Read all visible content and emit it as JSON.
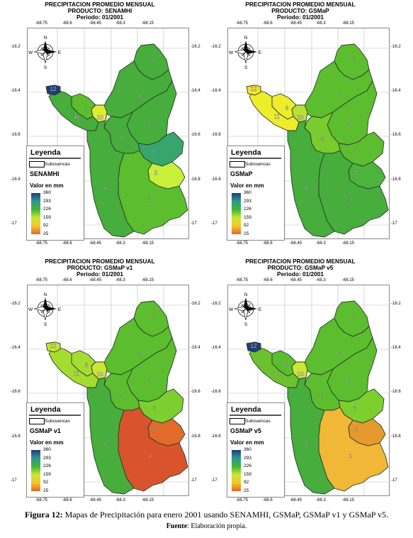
{
  "panels": [
    {
      "title": "PRECIPITACION PROMEDIO MENSUAL",
      "product_line": "PRODUCTO: SENAMHI",
      "period": "Periodo: 01/2001",
      "legend_product": "SENAMHI",
      "zone_colors": {
        "1": "#5cbd2e",
        "2": "#c8f03a",
        "3": "#47ad3d",
        "4": "#47ad3d",
        "5": "#47ad3d",
        "6": "#36a56e",
        "7": "#47ad3d",
        "8": "#5cbd2e",
        "9": "#47ad3d",
        "10": "#e0ec32",
        "11": "#47ad3d",
        "12": "#1f3d7d"
      }
    },
    {
      "title": "PRECIPITACION PROMEDIO MENSUAL",
      "product_line": "PRODUCTO: GSMaP",
      "period": "Periodo: 01/2001",
      "legend_product": "GSMaP",
      "zone_colors": {
        "1": "#47ad3d",
        "2": "#4cb43c",
        "3": "#5cbd2e",
        "4": "#47ad3d",
        "5": "#5cbd2e",
        "6": "#5cbd2e",
        "7": "#5cbd2e",
        "8": "#eded2c",
        "9": "#7acb2e",
        "10": "#b9e234",
        "11": "#eded2c",
        "12": "#f6e51c"
      }
    },
    {
      "title": "PRECIPITACION PROMEDIO MENSUAL",
      "product_line": "PRODUCTO: GSMaP v1",
      "period": "Periodo: 01/2001",
      "legend_product": "GSMaP v1",
      "zone_colors": {
        "1": "#d9542c",
        "2": "#e06b2a",
        "3": "#5cbd2e",
        "4": "#47ad3d",
        "5": "#5cbd2e",
        "6": "#7ccf2e",
        "7": "#5cbd2e",
        "8": "#a5dc30",
        "9": "#5cbd2e",
        "10": "#cde632",
        "11": "#a5dc30",
        "12": "#c5e432"
      }
    },
    {
      "title": "PRECIPITACION PROMEDIO MENSUAL",
      "product_line": "PRODUCTO: GSMaP v5",
      "period": "Periodo: 01/2001",
      "legend_product": "GSMaP v5",
      "zone_colors": {
        "1": "#f1b736",
        "2": "#e59a2e",
        "3": "#5cbd2e",
        "4": "#47ad3d",
        "5": "#5cbd2e",
        "6": "#7ccf2e",
        "7": "#5cbd2e",
        "8": "#5cbd2e",
        "9": "#5cbd2e",
        "10": "#c8e832",
        "11": "#6cc22e",
        "12": "#1f3d7d"
      }
    }
  ],
  "x_ticks": [
    "-68.75",
    "-68.6",
    "-68.45",
    "-68.3",
    "-68.15"
  ],
  "y_ticks": [
    "-16.2",
    "-16.4",
    "-16.6",
    "-16.8",
    "-17"
  ],
  "zone_labels": [
    "1",
    "2",
    "3",
    "4",
    "5",
    "6",
    "7",
    "8",
    "9",
    "10",
    "11",
    "12"
  ],
  "compass": {
    "n": "N",
    "s": "S",
    "e": "E",
    "w": "W"
  },
  "legend": {
    "title": "Leyenda",
    "subbasin_label": "Subcuencas",
    "unit_label": "Valor en mm",
    "values": [
      "360",
      "293",
      "226",
      "159",
      "92",
      "25"
    ],
    "ramp_colors": [
      "#1f3d7d",
      "#2e9a8a",
      "#3fb43a",
      "#c9e632",
      "#f4c72c",
      "#e06a2a"
    ]
  },
  "caption": {
    "label": "Figura 12:",
    "text": " Mapas de Precipitación para enero 2001 usando SENAMHI, GSMaP, GSMaP v1 y GSMaP v5."
  },
  "source": {
    "label": "Fuente",
    "text": ": Elaboración propia."
  }
}
